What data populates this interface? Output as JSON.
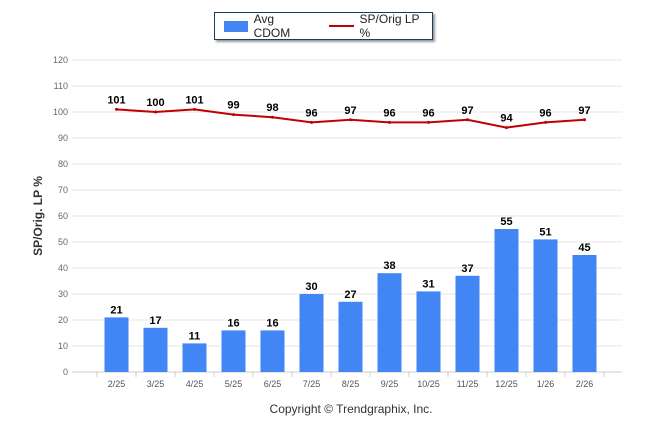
{
  "chart_data": {
    "type": "bar",
    "categories": [
      "2/25",
      "3/25",
      "4/25",
      "5/25",
      "6/25",
      "7/25",
      "8/25",
      "9/25",
      "10/25",
      "11/25",
      "12/25",
      "1/26",
      "2/26"
    ],
    "series": [
      {
        "name": "Avg CDOM",
        "type": "bar",
        "color": "#4285f4",
        "values": [
          21,
          17,
          11,
          16,
          16,
          30,
          27,
          38,
          31,
          37,
          55,
          51,
          45
        ]
      },
      {
        "name": "SP/Orig LP %",
        "type": "line",
        "color": "#c00000",
        "values": [
          101,
          100,
          101,
          99,
          98,
          96,
          97,
          96,
          96,
          97,
          94,
          96,
          97
        ]
      }
    ],
    "ylabel": "SP/Orig. LP %",
    "xlabel": "",
    "ylim": [
      0,
      120
    ],
    "yticks": [
      0,
      10,
      20,
      30,
      40,
      50,
      60,
      70,
      80,
      90,
      100,
      110,
      120
    ],
    "grid": true,
    "legend_position": "top-center"
  },
  "legend": {
    "bar_label": "Avg CDOM",
    "line_label": "SP/Orig LP %"
  },
  "copyright": "Copyright © Trendgraphix, Inc."
}
